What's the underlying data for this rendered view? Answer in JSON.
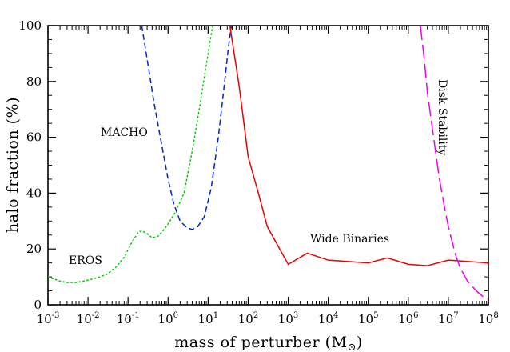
{
  "chart_data": {
    "type": "line",
    "xlabel": "mass of perturber (M",
    "xlabel_symbol": "⊙",
    "xlabel_close": ")",
    "ylabel": "halo fraction (%)",
    "xscale": "log",
    "xlim": [
      0.001,
      100000000
    ],
    "ylim": [
      0,
      100
    ],
    "x_ticks": [
      {
        "base": "10",
        "exp": "-3"
      },
      {
        "base": "10",
        "exp": "-2"
      },
      {
        "base": "10",
        "exp": "-1"
      },
      {
        "base": "10",
        "exp": "0"
      },
      {
        "base": "10",
        "exp": "1"
      },
      {
        "base": "10",
        "exp": "2"
      },
      {
        "base": "10",
        "exp": "3"
      },
      {
        "base": "10",
        "exp": "4"
      },
      {
        "base": "10",
        "exp": "5"
      },
      {
        "base": "10",
        "exp": "6"
      },
      {
        "base": "10",
        "exp": "7"
      },
      {
        "base": "10",
        "exp": "8"
      }
    ],
    "y_ticks": [
      "0",
      "20",
      "40",
      "60",
      "80",
      "100"
    ],
    "grid": false,
    "series": [
      {
        "name": "EROS",
        "color": "#00cc00",
        "style": "dotted",
        "points": [
          [
            0.001,
            10
          ],
          [
            0.002,
            8.5
          ],
          [
            0.003,
            8
          ],
          [
            0.005,
            8
          ],
          [
            0.01,
            8.8
          ],
          [
            0.02,
            10
          ],
          [
            0.03,
            11
          ],
          [
            0.05,
            13.5
          ],
          [
            0.08,
            17
          ],
          [
            0.12,
            22
          ],
          [
            0.18,
            26
          ],
          [
            0.22,
            26.5
          ],
          [
            0.3,
            25.5
          ],
          [
            0.4,
            24
          ],
          [
            0.55,
            24.5
          ],
          [
            0.7,
            26
          ],
          [
            1.0,
            29
          ],
          [
            1.5,
            33
          ],
          [
            2.5,
            40
          ],
          [
            4,
            55
          ],
          [
            6,
            70
          ],
          [
            9,
            86
          ],
          [
            13,
            100
          ]
        ]
      },
      {
        "name": "MACHO",
        "color": "#0022dd",
        "style": "dashed",
        "points": [
          [
            0.22,
            100
          ],
          [
            0.3,
            88
          ],
          [
            0.45,
            72
          ],
          [
            0.7,
            57
          ],
          [
            1.0,
            45
          ],
          [
            1.4,
            36
          ],
          [
            2.0,
            30
          ],
          [
            3.0,
            27.5
          ],
          [
            4.0,
            27
          ],
          [
            5.5,
            28
          ],
          [
            8,
            31.5
          ],
          [
            12,
            42
          ],
          [
            18,
            60
          ],
          [
            25,
            78
          ],
          [
            32,
            92
          ],
          [
            38,
            100
          ]
        ]
      },
      {
        "name": "Wide Binaries",
        "color": "#ee0000",
        "style": "solid",
        "points": [
          [
            35,
            100
          ],
          [
            60,
            78
          ],
          [
            100,
            53
          ],
          [
            180,
            40
          ],
          [
            300,
            28
          ],
          [
            1000,
            14.5
          ],
          [
            3000,
            18.5
          ],
          [
            10000,
            16
          ],
          [
            100000,
            15
          ],
          [
            300000,
            16.8
          ],
          [
            1000000,
            14.5
          ],
          [
            3000000,
            14
          ],
          [
            10000000,
            16
          ],
          [
            100000000,
            15
          ]
        ]
      },
      {
        "name": "Disk Stability",
        "color": "#ee00ee",
        "style": "longdash",
        "points": [
          [
            2000000,
            100
          ],
          [
            2500000,
            88
          ],
          [
            3000000,
            76
          ],
          [
            4000000,
            63
          ],
          [
            5000000,
            53
          ],
          [
            6000000,
            45
          ],
          [
            8000000,
            35
          ],
          [
            10000000,
            28
          ],
          [
            15000000,
            18
          ],
          [
            20000000,
            13
          ],
          [
            30000000,
            8.5
          ],
          [
            50000000,
            5
          ],
          [
            80000000,
            2.5
          ],
          [
            100000000,
            2
          ]
        ]
      }
    ],
    "annotations": [
      "MACHO",
      "EROS",
      "Wide Binaries",
      "Disk Stability"
    ]
  }
}
